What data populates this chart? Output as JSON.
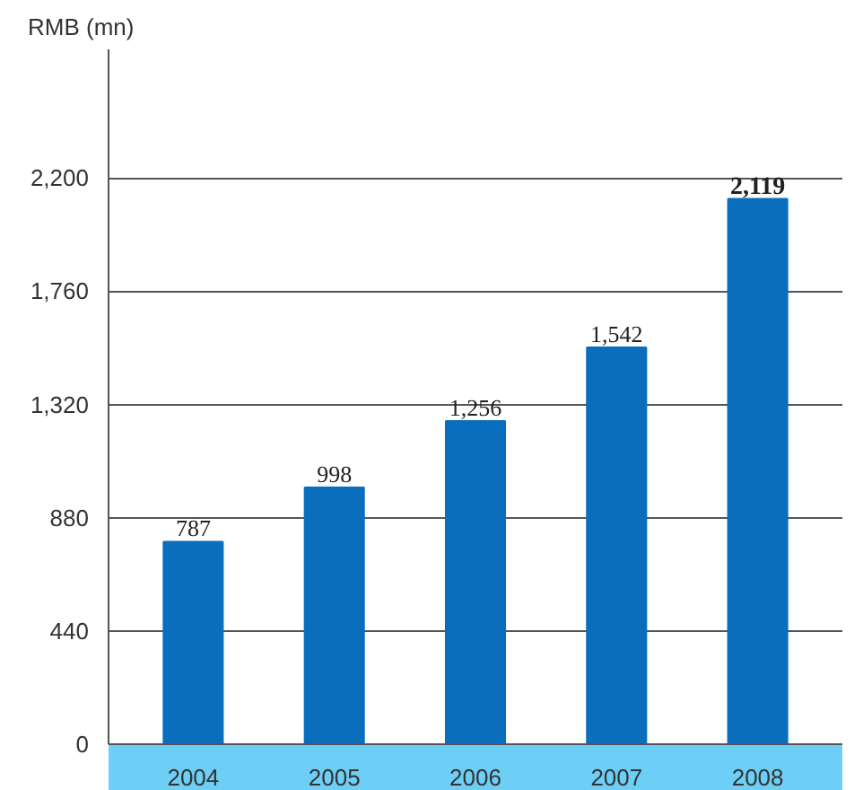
{
  "chart_data": {
    "type": "bar",
    "ylabel": "RMB (mn)",
    "categories": [
      "2004",
      "2005",
      "2006",
      "2007",
      "2008"
    ],
    "values": [
      787,
      998,
      1256,
      1542,
      2119
    ],
    "value_labels": [
      "787",
      "998",
      "1,256",
      "1,542",
      "2,119"
    ],
    "color": "#0a6ebd",
    "ylim": [
      0,
      2700
    ],
    "yticks": [
      0,
      440,
      880,
      {
        "value": 1320,
        "label": "1,320"
      },
      {
        "value": 1760,
        "label": "1,760"
      },
      {
        "value": 2200,
        "label": "2,200"
      }
    ],
    "grid": "y"
  }
}
